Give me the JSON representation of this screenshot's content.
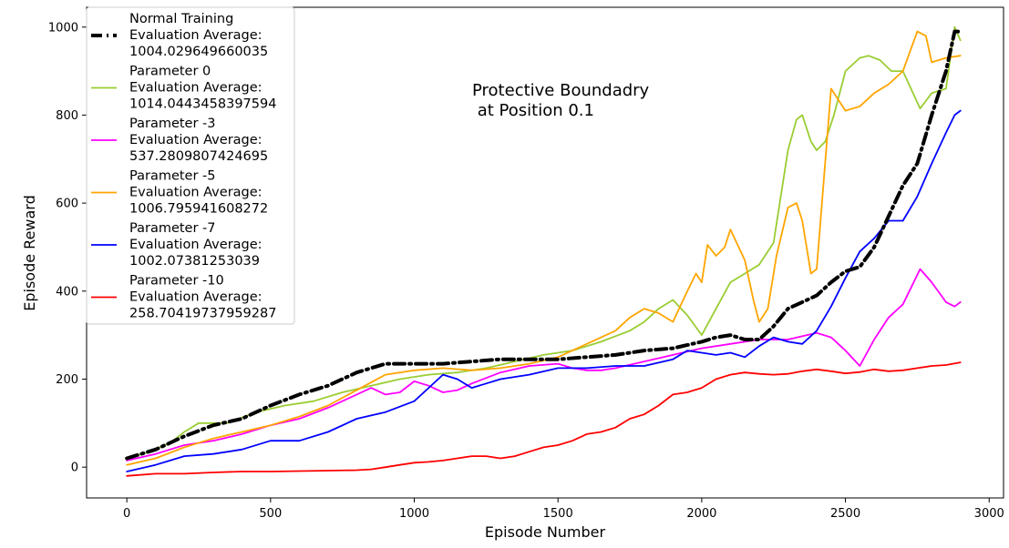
{
  "chart_data": {
    "type": "line",
    "title": "",
    "xlabel": "Episode Number",
    "ylabel": "Episode Reward",
    "xlim": [
      -140,
      3050
    ],
    "ylim": [
      -70,
      1045
    ],
    "xticks": [
      0,
      500,
      1000,
      1500,
      2000,
      2500,
      3000
    ],
    "yticks": [
      0,
      200,
      400,
      600,
      800,
      1000
    ],
    "grid": false,
    "legend_position": "upper-left",
    "annotation": [
      "Protective Boundadry",
      " at Position 0.1"
    ],
    "series": [
      {
        "name": "Normal Training",
        "legend_lines": [
          "Normal Training",
          " Evaluation Average:",
          " 1004.029649660035"
        ],
        "color": "#000000",
        "style": "dashdot",
        "x": [
          0,
          100,
          200,
          300,
          400,
          500,
          600,
          700,
          800,
          900,
          1000,
          1100,
          1200,
          1300,
          1400,
          1500,
          1600,
          1700,
          1800,
          1900,
          2000,
          2050,
          2100,
          2150,
          2200,
          2250,
          2300,
          2350,
          2400,
          2450,
          2500,
          2550,
          2600,
          2650,
          2700,
          2750,
          2800,
          2850,
          2880,
          2900
        ],
        "y": [
          20,
          40,
          70,
          95,
          110,
          140,
          165,
          185,
          215,
          235,
          235,
          235,
          240,
          245,
          245,
          245,
          250,
          255,
          265,
          270,
          285,
          295,
          300,
          290,
          290,
          320,
          360,
          375,
          390,
          420,
          445,
          455,
          500,
          570,
          640,
          690,
          800,
          900,
          990,
          990
        ]
      },
      {
        "name": "Parameter 0",
        "legend_lines": [
          "Parameter 0",
          " Evaluation Average:",
          " 1014.0443458397594"
        ],
        "color": "#9acd32",
        "style": "solid",
        "x": [
          0,
          80,
          150,
          200,
          250,
          350,
          450,
          550,
          650,
          750,
          850,
          950,
          1050,
          1150,
          1250,
          1350,
          1450,
          1550,
          1650,
          1750,
          1800,
          1850,
          1900,
          1950,
          2000,
          2050,
          2100,
          2150,
          2200,
          2250,
          2300,
          2330,
          2350,
          2380,
          2400,
          2430,
          2460,
          2500,
          2550,
          2580,
          2620,
          2660,
          2700,
          2760,
          2800,
          2850,
          2880,
          2900
        ],
        "y": [
          20,
          35,
          55,
          80,
          100,
          100,
          125,
          140,
          150,
          170,
          185,
          200,
          210,
          215,
          225,
          240,
          255,
          265,
          285,
          310,
          330,
          360,
          380,
          345,
          300,
          360,
          420,
          440,
          460,
          510,
          720,
          790,
          800,
          740,
          720,
          740,
          800,
          900,
          930,
          935,
          925,
          900,
          900,
          815,
          850,
          860,
          1000,
          970
        ]
      },
      {
        "name": "Parameter -3",
        "legend_lines": [
          "Parameter -3",
          " Evaluation Average:",
          " 537.2809807424695"
        ],
        "color": "#ff00ff",
        "style": "solid",
        "x": [
          0,
          100,
          200,
          300,
          400,
          500,
          600,
          700,
          800,
          850,
          900,
          950,
          1000,
          1050,
          1100,
          1150,
          1200,
          1300,
          1400,
          1500,
          1550,
          1600,
          1650,
          1700,
          1800,
          1900,
          2000,
          2100,
          2200,
          2300,
          2400,
          2450,
          2500,
          2550,
          2600,
          2650,
          2700,
          2760,
          2800,
          2850,
          2880,
          2900
        ],
        "y": [
          15,
          30,
          50,
          60,
          75,
          95,
          110,
          135,
          165,
          180,
          165,
          170,
          195,
          185,
          170,
          175,
          190,
          215,
          230,
          235,
          225,
          220,
          220,
          225,
          240,
          255,
          270,
          280,
          290,
          290,
          305,
          295,
          265,
          230,
          290,
          340,
          370,
          450,
          420,
          375,
          365,
          375
        ]
      },
      {
        "name": "Parameter -5",
        "legend_lines": [
          "Parameter -5",
          " Evaluation Average:",
          " 1006.795941608272"
        ],
        "color": "#ffa500",
        "style": "solid",
        "x": [
          0,
          100,
          200,
          300,
          400,
          500,
          600,
          700,
          800,
          900,
          1000,
          1100,
          1200,
          1300,
          1400,
          1500,
          1600,
          1700,
          1750,
          1800,
          1850,
          1900,
          1950,
          1980,
          2000,
          2020,
          2050,
          2080,
          2100,
          2150,
          2180,
          2200,
          2230,
          2260,
          2300,
          2330,
          2350,
          2380,
          2400,
          2450,
          2480,
          2500,
          2550,
          2600,
          2650,
          2700,
          2750,
          2780,
          2800,
          2850,
          2900
        ],
        "y": [
          5,
          20,
          45,
          65,
          80,
          95,
          115,
          140,
          175,
          210,
          220,
          225,
          220,
          225,
          235,
          250,
          280,
          310,
          340,
          360,
          350,
          330,
          400,
          440,
          420,
          505,
          480,
          500,
          540,
          470,
          380,
          330,
          360,
          480,
          590,
          600,
          560,
          440,
          450,
          860,
          830,
          810,
          820,
          850,
          870,
          900,
          990,
          980,
          920,
          930,
          935
        ]
      },
      {
        "name": "Parameter -7",
        "legend_lines": [
          "Parameter -7",
          " Evaluation Average:",
          " 1002.07381253039"
        ],
        "color": "#0000ff",
        "style": "solid",
        "x": [
          0,
          100,
          200,
          300,
          400,
          500,
          600,
          700,
          800,
          900,
          1000,
          1050,
          1100,
          1150,
          1200,
          1250,
          1300,
          1400,
          1500,
          1600,
          1700,
          1800,
          1900,
          1950,
          2000,
          2050,
          2100,
          2150,
          2200,
          2250,
          2300,
          2350,
          2400,
          2450,
          2500,
          2550,
          2600,
          2650,
          2700,
          2750,
          2800,
          2850,
          2880,
          2900
        ],
        "y": [
          -10,
          5,
          25,
          30,
          40,
          60,
          60,
          80,
          110,
          125,
          150,
          180,
          210,
          200,
          180,
          190,
          200,
          210,
          225,
          225,
          230,
          230,
          245,
          265,
          260,
          255,
          260,
          250,
          275,
          295,
          285,
          280,
          310,
          365,
          430,
          490,
          520,
          560,
          560,
          615,
          690,
          760,
          800,
          810
        ]
      },
      {
        "name": "Parameter -10",
        "legend_lines": [
          "Parameter -10",
          " Evaluation Average:",
          " 258.70419737959287"
        ],
        "color": "#ff0000",
        "style": "solid",
        "x": [
          0,
          100,
          200,
          300,
          400,
          500,
          600,
          700,
          800,
          850,
          900,
          950,
          1000,
          1050,
          1100,
          1150,
          1200,
          1250,
          1300,
          1350,
          1400,
          1450,
          1500,
          1550,
          1600,
          1650,
          1700,
          1750,
          1800,
          1850,
          1900,
          1950,
          2000,
          2050,
          2100,
          2150,
          2200,
          2250,
          2300,
          2350,
          2400,
          2450,
          2500,
          2550,
          2600,
          2650,
          2700,
          2750,
          2800,
          2850,
          2900
        ],
        "y": [
          -20,
          -15,
          -15,
          -12,
          -10,
          -10,
          -9,
          -8,
          -7,
          -5,
          0,
          5,
          10,
          12,
          15,
          20,
          25,
          25,
          20,
          25,
          35,
          45,
          50,
          60,
          75,
          80,
          90,
          110,
          120,
          140,
          165,
          170,
          180,
          200,
          210,
          215,
          212,
          210,
          212,
          218,
          222,
          218,
          213,
          216,
          222,
          218,
          220,
          225,
          230,
          232,
          238
        ]
      }
    ]
  }
}
